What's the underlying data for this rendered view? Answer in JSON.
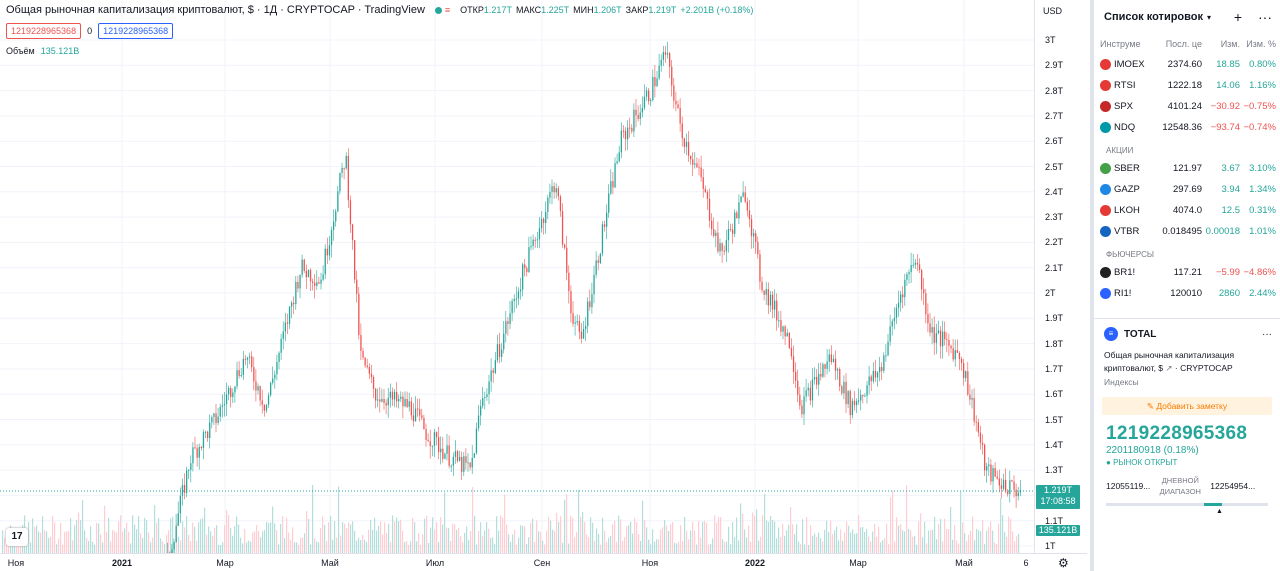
{
  "legend": {
    "title": "Общая рыночная капитализация криптовалют, $ · 1Д · CRYPTOCAP · TradingView",
    "open_label": "ОТКР",
    "open": "1.217T",
    "high_label": "МАКС",
    "high": "1.225T",
    "low_label": "МИН",
    "low": "1.206T",
    "close_label": "ЗАКР",
    "close": "1.219T",
    "change": "+2.201B (+0.18%)",
    "sell_box": "1219228965368",
    "spread": "0",
    "buy_box": "1219228965368",
    "volume_label": "Объём",
    "volume": "135.121B"
  },
  "price_axis": {
    "currency": "USD",
    "labels": [
      "3T",
      "2.9T",
      "2.8T",
      "2.7T",
      "2.6T",
      "2.5T",
      "2.4T",
      "2.3T",
      "2.2T",
      "2.1T",
      "2T",
      "1.9T",
      "1.8T",
      "1.7T",
      "1.6T",
      "1.5T",
      "1.4T",
      "1.3T",
      "1.1T",
      "1T"
    ],
    "current_price": "1.219T",
    "countdown": "17:08:58",
    "volume_tag": "135.121B"
  },
  "time_axis": {
    "labels": [
      "Ноя",
      "2021",
      "Мар",
      "Май",
      "Июл",
      "Сен",
      "Ноя",
      "2022",
      "Мар",
      "Май",
      "6"
    ]
  },
  "watchlist": {
    "title": "Список котировок",
    "columns": [
      "Инструме",
      "Посл. це",
      "Изм.",
      "Изм. %"
    ],
    "indices": [
      {
        "symbol": "IMOEX",
        "last": "2374.60",
        "chg": "18.85",
        "chgp": "0.80%",
        "dir": "pos",
        "color": "#e53935"
      },
      {
        "symbol": "RTSI",
        "last": "1222.18",
        "chg": "14.06",
        "chgp": "1.16%",
        "dir": "pos",
        "color": "#e53935"
      },
      {
        "symbol": "SPX",
        "last": "4101.24",
        "chg": "−30.92",
        "chgp": "−0.75%",
        "dir": "neg",
        "color": "#c62828"
      },
      {
        "symbol": "NDQ",
        "last": "12548.36",
        "chg": "−93.74",
        "chgp": "−0.74%",
        "dir": "neg",
        "color": "#0097a7"
      }
    ],
    "section_stocks": "АКЦИИ",
    "stocks": [
      {
        "symbol": "SBER",
        "last": "121.97",
        "chg": "3.67",
        "chgp": "3.10%",
        "dir": "pos",
        "color": "#43a047"
      },
      {
        "symbol": "GAZP",
        "last": "297.69",
        "chg": "3.94",
        "chgp": "1.34%",
        "dir": "pos",
        "color": "#1e88e5"
      },
      {
        "symbol": "LKOH",
        "last": "4074.0",
        "chg": "12.5",
        "chgp": "0.31%",
        "dir": "pos",
        "color": "#e53935"
      },
      {
        "symbol": "VTBR",
        "last": "0.018495",
        "chg": "0.00018",
        "chgp": "1.01%",
        "dir": "pos",
        "color": "#1565c0"
      }
    ],
    "section_futures": "ФЬЮЧЕРСЫ",
    "futures": [
      {
        "symbol": "BR1!",
        "last": "117.21",
        "chg": "−5.99",
        "chgp": "−4.86%",
        "dir": "neg",
        "color": "#212121"
      },
      {
        "symbol": "RI1!",
        "last": "120010",
        "chg": "2860",
        "chgp": "2.44%",
        "dir": "pos",
        "color": "#2962ff"
      }
    ]
  },
  "details": {
    "symbol": "TOTAL",
    "description": "Общая рыночная капитализация криптовалют, $",
    "exchange": "CRYPTOCAP",
    "type": "Индексы",
    "note_button": "Добавить заметку",
    "price": "1219228965368",
    "change": "2201180918 (0.18%)",
    "market_status": "РЫНОК ОТКРЫТ",
    "range_low": "12055119...",
    "range_label": "ДНЕВНОЙ ДИАПАЗОН",
    "range_high": "12254954..."
  },
  "colors": {
    "up": "#26a69a",
    "down": "#ef5350",
    "accent": "#2962ff"
  }
}
